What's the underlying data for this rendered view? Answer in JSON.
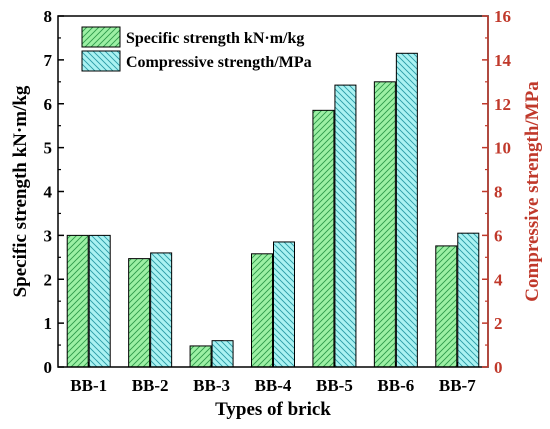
{
  "colors": {
    "specific_fill": "#9cf0a4",
    "specific_hatch": "#2e9a4a",
    "compressive_fill": "#aaf2f2",
    "compressive_hatch": "#2a9aa6",
    "right_axis": "#c0392b",
    "left_axis": "#000000"
  },
  "chart_data": {
    "type": "bar",
    "categories": [
      "BB-1",
      "BB-2",
      "BB-3",
      "BB-4",
      "BB-5",
      "BB-6",
      "BB-7"
    ],
    "series": [
      {
        "name": "Specific strength kN·m/kg",
        "axis": "left",
        "values": [
          3.0,
          2.47,
          0.48,
          2.58,
          5.85,
          6.5,
          2.76
        ]
      },
      {
        "name": "Compressive strength/MPa",
        "axis": "right",
        "values": [
          6.0,
          5.2,
          1.2,
          5.7,
          12.85,
          14.3,
          6.1
        ]
      }
    ],
    "xlabel": "Types of brick",
    "ylabel": "Specific strength kN·m/kg",
    "y2label": "Compressive strength/MPa",
    "ylim": [
      0,
      8
    ],
    "y2lim": [
      0,
      16
    ],
    "yticks": [
      "0",
      "1",
      "2",
      "3",
      "4",
      "5",
      "6",
      "7",
      "8"
    ],
    "y2ticks": [
      "0",
      "2",
      "4",
      "6",
      "8",
      "10",
      "12",
      "14",
      "16"
    ],
    "legend_position": "top-left",
    "grid": false
  }
}
